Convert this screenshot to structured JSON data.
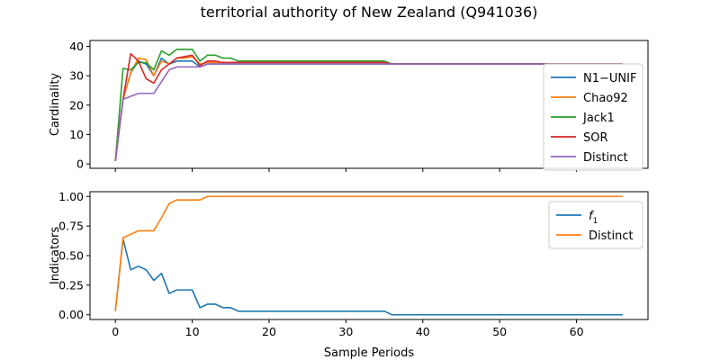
{
  "figure_title": "territorial authority of New Zealand (Q941036)",
  "chart_data": [
    {
      "type": "line",
      "xlabel": "",
      "ylabel": "Cardinality",
      "xlim": [
        -3.3,
        69.3
      ],
      "ylim": [
        -1.5,
        42
      ],
      "xticks": [
        0,
        10,
        20,
        30,
        40,
        50,
        60
      ],
      "yticks": [
        0,
        10,
        20,
        30,
        40
      ],
      "show_xtick_labels": false,
      "legend_position": "right",
      "x": [
        0,
        1,
        2,
        3,
        4,
        5,
        6,
        7,
        8,
        9,
        10,
        11,
        12,
        13,
        14,
        15,
        16,
        17,
        18,
        19,
        20,
        21,
        22,
        23,
        24,
        25,
        26,
        27,
        28,
        29,
        30,
        31,
        32,
        33,
        34,
        35,
        36,
        37,
        38,
        39,
        40,
        41,
        42,
        43,
        44,
        45,
        46,
        47,
        48,
        49,
        50,
        51,
        52,
        53,
        54,
        55,
        56,
        57,
        58,
        59,
        60,
        61,
        62,
        63,
        64,
        65,
        66
      ],
      "series": [
        {
          "name": "N1−UNIF",
          "color": "#1f77b4",
          "values": [
            1,
            22,
            31,
            35,
            34,
            30,
            36,
            34,
            35,
            35,
            35,
            33,
            34,
            34,
            34,
            34,
            34,
            34,
            34,
            34,
            34,
            34,
            34,
            34,
            34,
            34,
            34,
            34,
            34,
            34,
            34,
            34,
            34,
            34,
            34,
            34,
            34,
            34,
            34,
            34,
            34,
            34,
            34,
            34,
            34,
            34,
            34,
            34,
            34,
            34,
            34,
            34,
            34,
            34,
            34,
            34,
            34,
            34,
            34,
            34,
            34,
            34,
            34,
            34,
            34,
            34,
            34
          ]
        },
        {
          "name": "Chao92",
          "color": "#ff7f0e",
          "values": [
            1,
            22,
            31,
            36,
            35.5,
            30,
            35,
            34,
            36,
            36,
            36.5,
            34,
            34.5,
            34.5,
            34.5,
            34.5,
            34.5,
            34.5,
            34.5,
            34.5,
            34.5,
            34.5,
            34.5,
            34.5,
            34.5,
            34.5,
            34.5,
            34.5,
            34.5,
            34.5,
            34.5,
            34.5,
            34.5,
            34.5,
            34.5,
            34.5,
            34,
            34,
            34,
            34,
            34,
            34,
            34,
            34,
            34,
            34,
            34,
            34,
            34,
            34,
            34,
            34,
            34,
            34,
            34,
            34,
            34,
            34,
            34,
            34,
            34,
            34,
            34,
            34,
            34,
            34,
            34
          ]
        },
        {
          "name": "Jack1",
          "color": "#2ca02c",
          "values": [
            1,
            32.5,
            32,
            34.5,
            34.5,
            32,
            38.5,
            37,
            39,
            39,
            39,
            35,
            37,
            37,
            36,
            36,
            35,
            35,
            35,
            35,
            35,
            35,
            35,
            35,
            35,
            35,
            35,
            35,
            35,
            35,
            35,
            35,
            35,
            35,
            35,
            35,
            34,
            34,
            34,
            34,
            34,
            34,
            34,
            34,
            34,
            34,
            34,
            34,
            34,
            34,
            34,
            34,
            34,
            34,
            34,
            34,
            34,
            34,
            34,
            34,
            34,
            34,
            34,
            34,
            34,
            34,
            34
          ]
        },
        {
          "name": "SOR",
          "color": "#d62728",
          "values": [
            1,
            22,
            37.5,
            35,
            29,
            27.5,
            32,
            34,
            36,
            36.5,
            37,
            33.5,
            35,
            35,
            34.5,
            34.5,
            34.5,
            34.5,
            34.5,
            34.5,
            34.5,
            34.5,
            34.5,
            34.5,
            34.5,
            34.5,
            34.5,
            34.5,
            34.5,
            34.5,
            34.5,
            34.5,
            34.5,
            34.5,
            34.5,
            34.5,
            34,
            34,
            34,
            34,
            34,
            34,
            34,
            34,
            34,
            34,
            34,
            34,
            34,
            34,
            34,
            34,
            34,
            34,
            34,
            34,
            34,
            34,
            34,
            34,
            34,
            34,
            34,
            34,
            34,
            34,
            34
          ]
        },
        {
          "name": "Distinct",
          "color": "#9467bd",
          "values": [
            1,
            22,
            23,
            24,
            24,
            24,
            28,
            32,
            33,
            33,
            33,
            33,
            34,
            34,
            34,
            34,
            34,
            34,
            34,
            34,
            34,
            34,
            34,
            34,
            34,
            34,
            34,
            34,
            34,
            34,
            34,
            34,
            34,
            34,
            34,
            34,
            34,
            34,
            34,
            34,
            34,
            34,
            34,
            34,
            34,
            34,
            34,
            34,
            34,
            34,
            34,
            34,
            34,
            34,
            34,
            34,
            34,
            34,
            34,
            34,
            34,
            34,
            34,
            34,
            34,
            34,
            34
          ]
        }
      ]
    },
    {
      "type": "line",
      "xlabel": "Sample Periods",
      "ylabel": "Indicators",
      "xlim": [
        -3.3,
        69.3
      ],
      "ylim": [
        -0.04,
        1.04
      ],
      "xticks": [
        0,
        10,
        20,
        30,
        40,
        50,
        60
      ],
      "yticks": [
        0.0,
        0.25,
        0.5,
        0.75,
        1.0
      ],
      "ytick_labels": [
        "0.00",
        "0.25",
        "0.50",
        "0.75",
        "1.00"
      ],
      "show_xtick_labels": true,
      "legend_position": "upper right",
      "x": [
        0,
        1,
        2,
        3,
        4,
        5,
        6,
        7,
        8,
        9,
        10,
        11,
        12,
        13,
        14,
        15,
        16,
        17,
        18,
        19,
        20,
        21,
        22,
        23,
        24,
        25,
        26,
        27,
        28,
        29,
        30,
        31,
        32,
        33,
        34,
        35,
        36,
        37,
        38,
        39,
        40,
        41,
        42,
        43,
        44,
        45,
        46,
        47,
        48,
        49,
        50,
        51,
        52,
        53,
        54,
        55,
        56,
        57,
        58,
        59,
        60,
        61,
        62,
        63,
        64,
        65,
        66
      ],
      "series": [
        {
          "name": "f",
          "name_subscript": "1",
          "color": "#1f77b4",
          "values": [
            0.03,
            0.64,
            0.38,
            0.41,
            0.38,
            0.29,
            0.35,
            0.18,
            0.21,
            0.21,
            0.21,
            0.06,
            0.09,
            0.09,
            0.06,
            0.06,
            0.03,
            0.03,
            0.03,
            0.03,
            0.03,
            0.03,
            0.03,
            0.03,
            0.03,
            0.03,
            0.03,
            0.03,
            0.03,
            0.03,
            0.03,
            0.03,
            0.03,
            0.03,
            0.03,
            0.03,
            0.0,
            0.0,
            0.0,
            0.0,
            0.0,
            0.0,
            0.0,
            0.0,
            0.0,
            0.0,
            0.0,
            0.0,
            0.0,
            0.0,
            0.0,
            0.0,
            0.0,
            0.0,
            0.0,
            0.0,
            0.0,
            0.0,
            0.0,
            0.0,
            0.0,
            0.0,
            0.0,
            0.0,
            0.0,
            0.0,
            0.0
          ]
        },
        {
          "name": "Distinct",
          "color": "#ff7f0e",
          "values": [
            0.03,
            0.65,
            0.68,
            0.71,
            0.71,
            0.71,
            0.82,
            0.94,
            0.97,
            0.97,
            0.97,
            0.97,
            1.0,
            1.0,
            1.0,
            1.0,
            1.0,
            1.0,
            1.0,
            1.0,
            1.0,
            1.0,
            1.0,
            1.0,
            1.0,
            1.0,
            1.0,
            1.0,
            1.0,
            1.0,
            1.0,
            1.0,
            1.0,
            1.0,
            1.0,
            1.0,
            1.0,
            1.0,
            1.0,
            1.0,
            1.0,
            1.0,
            1.0,
            1.0,
            1.0,
            1.0,
            1.0,
            1.0,
            1.0,
            1.0,
            1.0,
            1.0,
            1.0,
            1.0,
            1.0,
            1.0,
            1.0,
            1.0,
            1.0,
            1.0,
            1.0,
            1.0,
            1.0,
            1.0,
            1.0,
            1.0,
            1.0
          ]
        }
      ]
    }
  ]
}
